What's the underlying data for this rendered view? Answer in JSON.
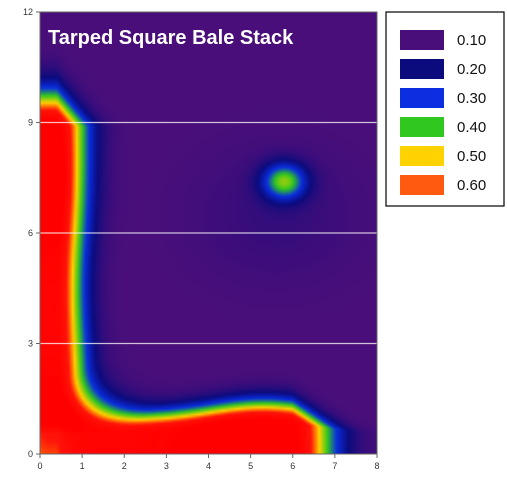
{
  "chart_data": {
    "type": "heatmap",
    "title": "Tarped Square Bale Stack",
    "xlabel": "",
    "ylabel": "",
    "xlim": [
      0,
      8
    ],
    "ylim": [
      0,
      12
    ],
    "x_ticks": [
      0,
      1,
      2,
      3,
      4,
      5,
      6,
      7,
      8
    ],
    "y_ticks": [
      0,
      3,
      6,
      9,
      12
    ],
    "grid": "horizontal white lines at y = 3, 6, 9",
    "legend_position": "right",
    "legend": [
      {
        "label": "0.10",
        "color": "#4a0e7a"
      },
      {
        "label": "0.20",
        "color": "#0b0b7e"
      },
      {
        "label": "0.30",
        "color": "#0a2ee0"
      },
      {
        "label": "0.40",
        "color": "#30c81e"
      },
      {
        "label": "0.50",
        "color": "#ffd200"
      },
      {
        "label": "0.60",
        "color": "#ff5a10"
      }
    ],
    "background_level": 0.1,
    "features": [
      {
        "shape": "column",
        "x_range": [
          0,
          0.8
        ],
        "y_range": [
          0,
          9.8
        ],
        "peak": 0.6,
        "center": [
          0.3,
          7.6
        ]
      },
      {
        "shape": "band",
        "x_range": [
          0,
          6.8
        ],
        "y_range": [
          0,
          1.0
        ],
        "peak": 0.6,
        "center": [
          5.0,
          0.3
        ]
      },
      {
        "shape": "hotspot",
        "center": [
          5.8,
          7.4
        ],
        "peak": 0.4
      },
      {
        "shape": "region",
        "x_range": [
          4.0,
          8.0
        ],
        "y_range": [
          4.5,
          8.5
        ],
        "peak": 0.2
      }
    ]
  }
}
